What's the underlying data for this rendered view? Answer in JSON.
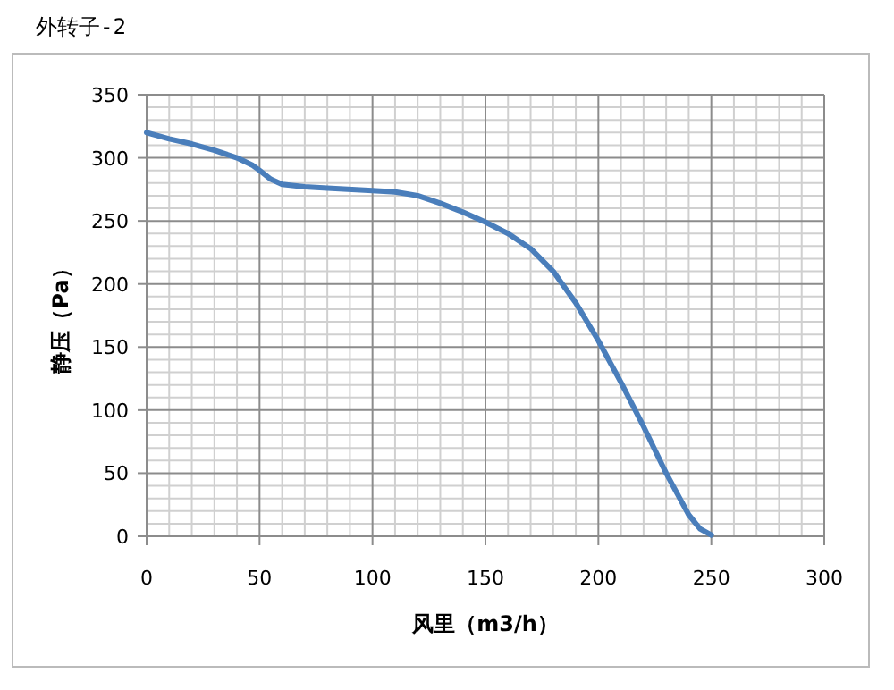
{
  "chart_data": {
    "type": "line",
    "title": "外转子-2",
    "xlabel": "风里（m3/h）",
    "ylabel": "静压（Pa）",
    "x": [
      0,
      10,
      20,
      30,
      40,
      47,
      50,
      55,
      60,
      70,
      80,
      100,
      110,
      120,
      130,
      140,
      150,
      160,
      170,
      180,
      190,
      200,
      210,
      220,
      230,
      240,
      245,
      250
    ],
    "series": [
      {
        "color": "#4a7ebb",
        "values": [
          320,
          315,
          311,
          306,
          300,
          294,
          290,
          283,
          279,
          277,
          276,
          274,
          273,
          270,
          264,
          257,
          249,
          240,
          228,
          210,
          185,
          155,
          122,
          87,
          50,
          17,
          6,
          1
        ]
      }
    ],
    "xlim": [
      0,
      300
    ],
    "ylim": [
      0,
      350
    ],
    "xticks": [
      0,
      50,
      100,
      150,
      200,
      250,
      300
    ],
    "yticks": [
      0,
      50,
      100,
      150,
      200,
      250,
      300,
      350
    ],
    "grid": true,
    "marker": "none",
    "line_style": "solid"
  }
}
